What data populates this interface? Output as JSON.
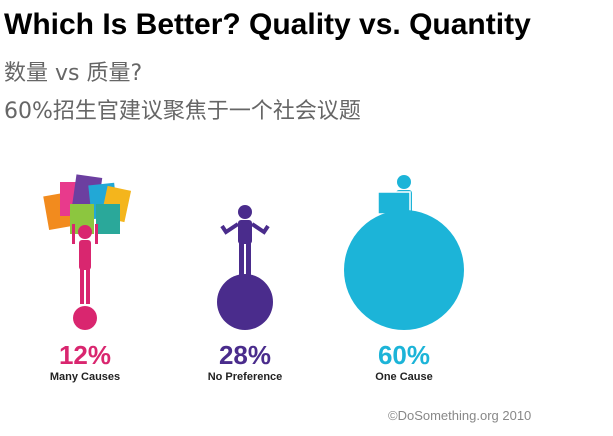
{
  "chart_data": {
    "type": "bubble",
    "title": "Which Is Better? Quality vs. Quantity",
    "subtitle": [
      "数量 vs 质量?",
      "60%招生官建议聚焦于一个社会议题"
    ],
    "categories": [
      "Many Causes",
      "No Preference",
      "One Cause"
    ],
    "values": [
      12,
      28,
      60
    ],
    "value_labels": [
      "12%",
      "28%",
      "60%"
    ],
    "colors": [
      "#d9266f",
      "#4a2c8c",
      "#1cb4d8"
    ],
    "source": "©DoSomething.org 2010"
  }
}
